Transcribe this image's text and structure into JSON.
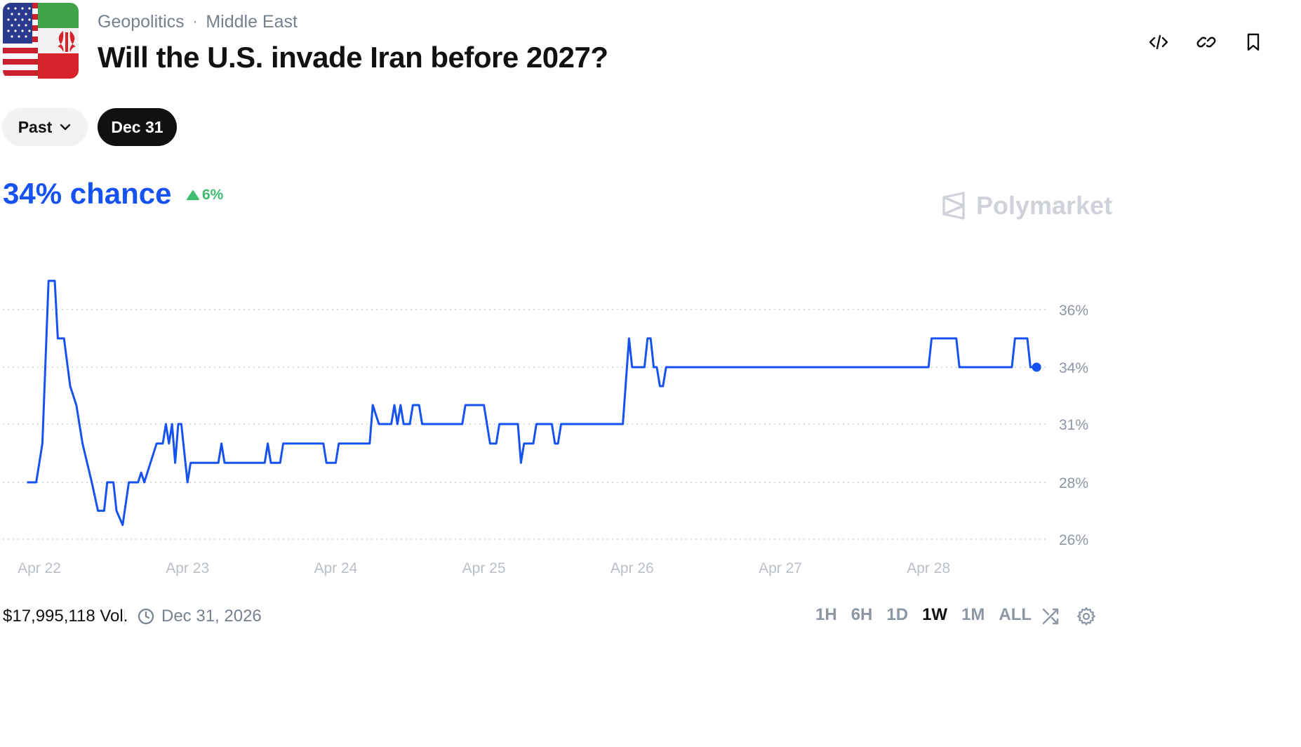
{
  "header": {
    "breadcrumbs": [
      "Geopolitics",
      "Middle East"
    ],
    "separator": "·",
    "title": "Will the U.S. invade Iran before 2027?",
    "thumbnail_icon": "us-iran-flag-icon",
    "actions": [
      {
        "icon": "embed-code-icon"
      },
      {
        "icon": "link-icon"
      },
      {
        "icon": "bookmark-icon"
      }
    ]
  },
  "filters": {
    "past_label": "Past",
    "date_label": "Dec 31"
  },
  "summary": {
    "chance_text": "34% chance",
    "delta_text": "6%",
    "delta_direction": "up",
    "brand": "Polymarket"
  },
  "colors": {
    "accent": "#1652f0",
    "positive": "#3dbb6e",
    "muted": "#77808d"
  },
  "chart_data": {
    "type": "line",
    "x_tick_labels": [
      "Apr 22",
      "Apr 23",
      "Apr 24",
      "Apr 25",
      "Apr 26",
      "Apr 27",
      "Apr 28"
    ],
    "y_tick_labels": [
      "36%",
      "34%",
      "31%",
      "28%",
      "26%"
    ],
    "y_ticks": [
      36,
      34,
      31,
      28,
      26
    ],
    "ylim": [
      26,
      36
    ],
    "grid": true,
    "y_axis_side": "right",
    "series": [
      {
        "color": "#1652f0",
        "points": [
          [
            "Apr 21 22:00",
            28
          ],
          [
            "Apr 21 23:30",
            28
          ],
          [
            "Apr 22 00:30",
            30
          ],
          [
            "Apr 22 01:30",
            37
          ],
          [
            "Apr 22 02:30",
            37
          ],
          [
            "Apr 22 03:00",
            35
          ],
          [
            "Apr 22 04:00",
            35
          ],
          [
            "Apr 22 05:00",
            33
          ],
          [
            "Apr 22 06:00",
            32
          ],
          [
            "Apr 22 07:00",
            30
          ],
          [
            "Apr 22 08:30",
            28
          ],
          [
            "Apr 22 09:30",
            27
          ],
          [
            "Apr 22 10:30",
            27
          ],
          [
            "Apr 22 11:00",
            28
          ],
          [
            "Apr 22 12:00",
            28
          ],
          [
            "Apr 22 12:30",
            27
          ],
          [
            "Apr 22 13:30",
            26.5
          ],
          [
            "Apr 22 14:30",
            28
          ],
          [
            "Apr 22 16:00",
            28
          ],
          [
            "Apr 22 16:30",
            28.5
          ],
          [
            "Apr 22 17:00",
            28
          ],
          [
            "Apr 22 18:00",
            29
          ],
          [
            "Apr 22 19:00",
            30
          ],
          [
            "Apr 22 20:00",
            30
          ],
          [
            "Apr 22 20:30",
            31
          ],
          [
            "Apr 22 21:00",
            30
          ],
          [
            "Apr 22 21:30",
            31
          ],
          [
            "Apr 22 22:00",
            29
          ],
          [
            "Apr 22 22:30",
            31
          ],
          [
            "Apr 22 23:00",
            31
          ],
          [
            "Apr 23 00:00",
            28
          ],
          [
            "Apr 23 00:30",
            29
          ],
          [
            "Apr 23 05:00",
            29
          ],
          [
            "Apr 23 05:30",
            30
          ],
          [
            "Apr 23 06:00",
            29
          ],
          [
            "Apr 23 12:30",
            29
          ],
          [
            "Apr 23 13:00",
            30
          ],
          [
            "Apr 23 13:30",
            29
          ],
          [
            "Apr 23 15:00",
            29
          ],
          [
            "Apr 23 15:30",
            30
          ],
          [
            "Apr 23 22:00",
            30
          ],
          [
            "Apr 23 22:30",
            29
          ],
          [
            "Apr 23 24:00",
            29
          ],
          [
            "Apr 24 00:30",
            30
          ],
          [
            "Apr 24 05:30",
            30
          ],
          [
            "Apr 24 06:00",
            32
          ],
          [
            "Apr 24 07:00",
            31
          ],
          [
            "Apr 24 09:00",
            31
          ],
          [
            "Apr 24 09:30",
            32
          ],
          [
            "Apr 24 10:00",
            31
          ],
          [
            "Apr 24 10:30",
            32
          ],
          [
            "Apr 24 11:00",
            31
          ],
          [
            "Apr 24 12:00",
            31
          ],
          [
            "Apr 24 12:30",
            32
          ],
          [
            "Apr 24 13:30",
            32
          ],
          [
            "Apr 24 14:00",
            31
          ],
          [
            "Apr 24 20:30",
            31
          ],
          [
            "Apr 24 21:00",
            32
          ],
          [
            "Apr 24 24:00",
            32
          ],
          [
            "Apr 25 01:00",
            30
          ],
          [
            "Apr 25 02:00",
            30
          ],
          [
            "Apr 25 02:30",
            31
          ],
          [
            "Apr 25 05:30",
            31
          ],
          [
            "Apr 25 06:00",
            29
          ],
          [
            "Apr 25 06:30",
            30
          ],
          [
            "Apr 25 08:00",
            30
          ],
          [
            "Apr 25 08:30",
            31
          ],
          [
            "Apr 25 11:00",
            31
          ],
          [
            "Apr 25 11:30",
            30
          ],
          [
            "Apr 25 12:00",
            30
          ],
          [
            "Apr 25 12:30",
            31
          ],
          [
            "Apr 25 22:30",
            31
          ],
          [
            "Apr 25 23:30",
            35
          ],
          [
            "Apr 26 00:00",
            34
          ],
          [
            "Apr 26 02:00",
            34
          ],
          [
            "Apr 26 02:30",
            35
          ],
          [
            "Apr 26 03:00",
            35
          ],
          [
            "Apr 26 03:30",
            34
          ],
          [
            "Apr 26 04:00",
            34
          ],
          [
            "Apr 26 04:30",
            33
          ],
          [
            "Apr 26 05:00",
            33
          ],
          [
            "Apr 26 05:30",
            34
          ],
          [
            "Apr 28 00:00",
            34
          ],
          [
            "Apr 28 00:30",
            35
          ],
          [
            "Apr 28 04:30",
            35
          ],
          [
            "Apr 28 05:00",
            34
          ],
          [
            "Apr 28 13:30",
            34
          ],
          [
            "Apr 28 14:00",
            35
          ],
          [
            "Apr 28 16:00",
            35
          ],
          [
            "Apr 28 16:30",
            34
          ],
          [
            "Apr 28 17:30",
            34
          ]
        ],
        "latest": 34
      }
    ]
  },
  "footer": {
    "volume": "$17,995,118 Vol.",
    "end_date": "Dec 31, 2026",
    "ranges": [
      "1H",
      "6H",
      "1D",
      "1W",
      "1M",
      "ALL"
    ],
    "active_range": "1W",
    "controls": [
      {
        "icon": "shuffle-icon"
      },
      {
        "icon": "settings-gear-icon"
      }
    ]
  }
}
